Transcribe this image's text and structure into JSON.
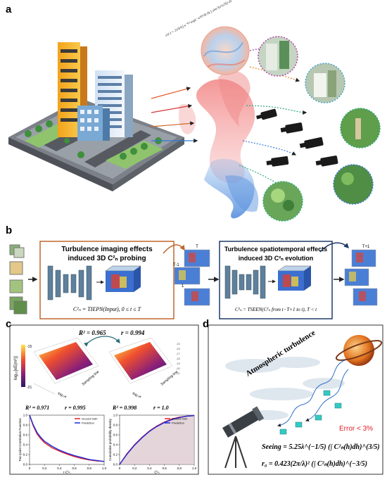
{
  "panels": {
    "a": {
      "letter": "a"
    },
    "b": {
      "letter": "b",
      "box1_title_line1": "Turbulence imaging effects",
      "box1_title_line2": "induced 3D C²ₙ probing",
      "box1_formula": "C²ₙ = TIEPN(Input), 0 ≤ t ≤ T",
      "box2_title_line1": "Turbulence spatiotemporal effects",
      "box2_title_line2": "induced 3D C²ₙ evolution",
      "box2_formula": "C²ₙ = TSEEN(C²ₙ from t−T+1 to t), T < t",
      "frame_labels": [
        "T",
        "T-1",
        "1",
        "T+1"
      ],
      "box1_color": "#c0672f",
      "box2_color": "#1f3a6b"
    },
    "c": {
      "letter": "c",
      "top_stats": {
        "r2": "R² = 0.965",
        "r": "r = 0.994"
      },
      "colorbar": {
        "max": "-15",
        "min": "-21",
        "label": "log₁₀[κE(m²)]"
      },
      "axis_tick_labels": [
        "-15",
        "-16",
        "-17",
        "-18",
        "-19",
        "-20",
        "-21"
      ],
      "axis_label_sampling": "Sampling line",
      "axis_label_log": "log₁₀κ",
      "left_stats": {
        "r2": "R² = 0.971",
        "r": "r = 0.995"
      },
      "right_stats": {
        "r2": "R² = 0.998",
        "r": "r = 1.0"
      },
      "left_chart": {
        "ylabel": "Two-point Correlation Function",
        "xlabel": "r·C²ₙ",
        "legend": [
          "Ground truth",
          "Prediction"
        ],
        "yticks": [
          "1.0",
          "0.8",
          "0.6",
          "0.4",
          "0.2",
          "0.0"
        ],
        "xticks": [
          "0",
          "0.2",
          "0.4",
          "0.6",
          "0.8",
          "1.0"
        ]
      },
      "right_chart": {
        "ylabel": "Cumulative probability density",
        "xlabel": "C²ₙ",
        "legend": [
          "Ground truth",
          "Prediction"
        ],
        "yticks": [
          "1.0",
          "0.8",
          "0.6",
          "0.4",
          "0.2",
          "0.0"
        ],
        "xticks": [
          "0",
          "0.2",
          "0.4",
          "0.6",
          "0.8",
          "1.0"
        ]
      }
    },
    "d": {
      "letter": "d",
      "title": "Atmospheric turbulence",
      "error": "Error < 3%",
      "seeing_formula": "Seeing = 5.25λ^(−1/5) (∫ C²ₙ(h)dh)^(3/5)",
      "r0_formula": "r₀ = 0.423(2π/λ)² (∫ C²ₙ(h)dh)^(−3/5)"
    }
  },
  "chart_data": [
    {
      "type": "line",
      "title": "",
      "xlabel": "r·C²ₙ",
      "ylabel": "Two-point Correlation Function",
      "xlim": [
        0,
        1.0
      ],
      "ylim": [
        0,
        1.0
      ],
      "series": [
        {
          "name": "Ground truth",
          "x": [
            0,
            0.05,
            0.1,
            0.15,
            0.2,
            0.3,
            0.4,
            0.5,
            0.6,
            0.7,
            0.8,
            0.9,
            1.0
          ],
          "y": [
            1.0,
            0.78,
            0.62,
            0.52,
            0.44,
            0.34,
            0.27,
            0.21,
            0.16,
            0.12,
            0.09,
            0.07,
            0.06
          ]
        },
        {
          "name": "Prediction",
          "x": [
            0,
            0.05,
            0.1,
            0.15,
            0.2,
            0.3,
            0.4,
            0.5,
            0.6,
            0.7,
            0.8,
            0.9,
            1.0
          ],
          "y": [
            1.0,
            0.8,
            0.65,
            0.55,
            0.47,
            0.37,
            0.29,
            0.23,
            0.18,
            0.14,
            0.1,
            0.08,
            0.06
          ]
        }
      ]
    },
    {
      "type": "area",
      "title": "",
      "xlabel": "C²ₙ",
      "ylabel": "Cumulative probability density",
      "xlim": [
        0,
        1.0
      ],
      "ylim": [
        0,
        1.0
      ],
      "series": [
        {
          "name": "Ground truth",
          "x": [
            0,
            0.1,
            0.2,
            0.3,
            0.4,
            0.5,
            0.6,
            0.7,
            0.8,
            0.9,
            1.0
          ],
          "y": [
            0.0,
            0.22,
            0.4,
            0.55,
            0.68,
            0.78,
            0.86,
            0.92,
            0.96,
            0.98,
            0.99
          ]
        },
        {
          "name": "Prediction",
          "x": [
            0,
            0.1,
            0.2,
            0.3,
            0.4,
            0.5,
            0.6,
            0.7,
            0.8,
            0.9,
            1.0
          ],
          "y": [
            0.0,
            0.21,
            0.39,
            0.54,
            0.67,
            0.77,
            0.85,
            0.91,
            0.95,
            0.98,
            0.99
          ]
        }
      ]
    }
  ],
  "colors": {
    "ground_truth": "#e0202a",
    "prediction": "#1e2bd8",
    "panel_border": "#333333"
  }
}
